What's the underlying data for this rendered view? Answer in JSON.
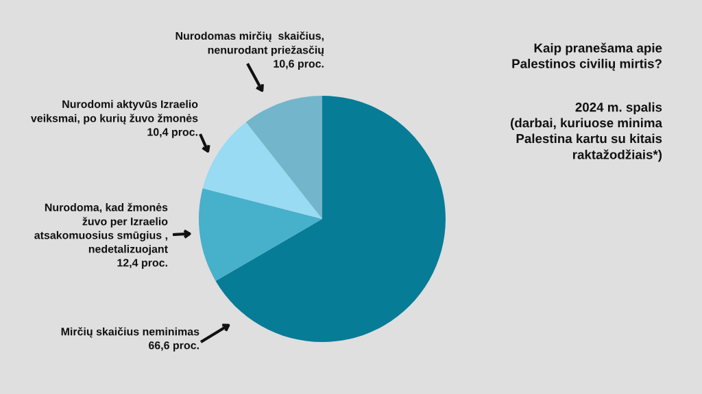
{
  "chart_data": {
    "type": "pie",
    "title": "Kaip pranešama apie\nPalestinos civilių mirtis?",
    "subtitle": "2024 m. spalis\n(darbai, kuriuose minima\nPalestina kartu su kitais\nraktažodžiais*)",
    "categories": [
      "Mirčių skaičius neminimas",
      "Nurodoma, kad žmonės\nžuvo per Izraelio\natsakomuosius smūgius ,\nnedetalizuojant",
      "Nurodomi aktyvūs Izraelio\nveiksmai, po kurių žuvo žmonės",
      "Nurodomas mirčių  skaičius,\nnenurodant priežasčių"
    ],
    "values": [
      66.6,
      12.4,
      10.4,
      10.6
    ],
    "colors": [
      "#077c97",
      "#47b0cb",
      "#98dbf3",
      "#73b5cb"
    ],
    "value_labels": [
      "66,6 proc.",
      "12,4 proc.",
      "10,4 proc.",
      "10,6 proc."
    ]
  }
}
